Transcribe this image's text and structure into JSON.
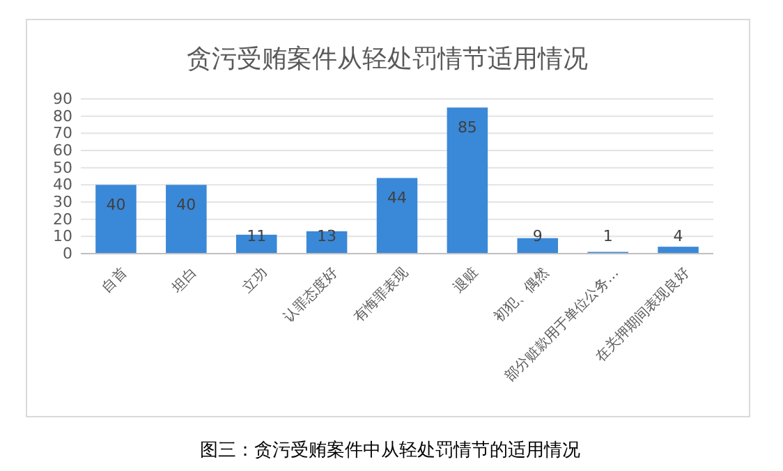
{
  "chart_data": {
    "type": "bar",
    "title": "贪污受贿案件从轻处罚情节适用情况",
    "categories": [
      "自首",
      "坦白",
      "立功",
      "认罪态度好",
      "有悔罪表现",
      "退赃",
      "初犯、偶然",
      "部分赃款用于单位公务…",
      "在关押期间表现良好"
    ],
    "values": [
      40,
      40,
      11,
      13,
      44,
      85,
      9,
      1,
      4
    ],
    "color": "#3a88d8",
    "ylim": [
      0,
      90
    ],
    "yticks": [
      0,
      10,
      20,
      30,
      40,
      50,
      60,
      70,
      80,
      90
    ],
    "grid": true,
    "data_labels": true,
    "annotations": [
      "图三：贪污受贿案件中从轻处罚情节的适用情况"
    ]
  }
}
